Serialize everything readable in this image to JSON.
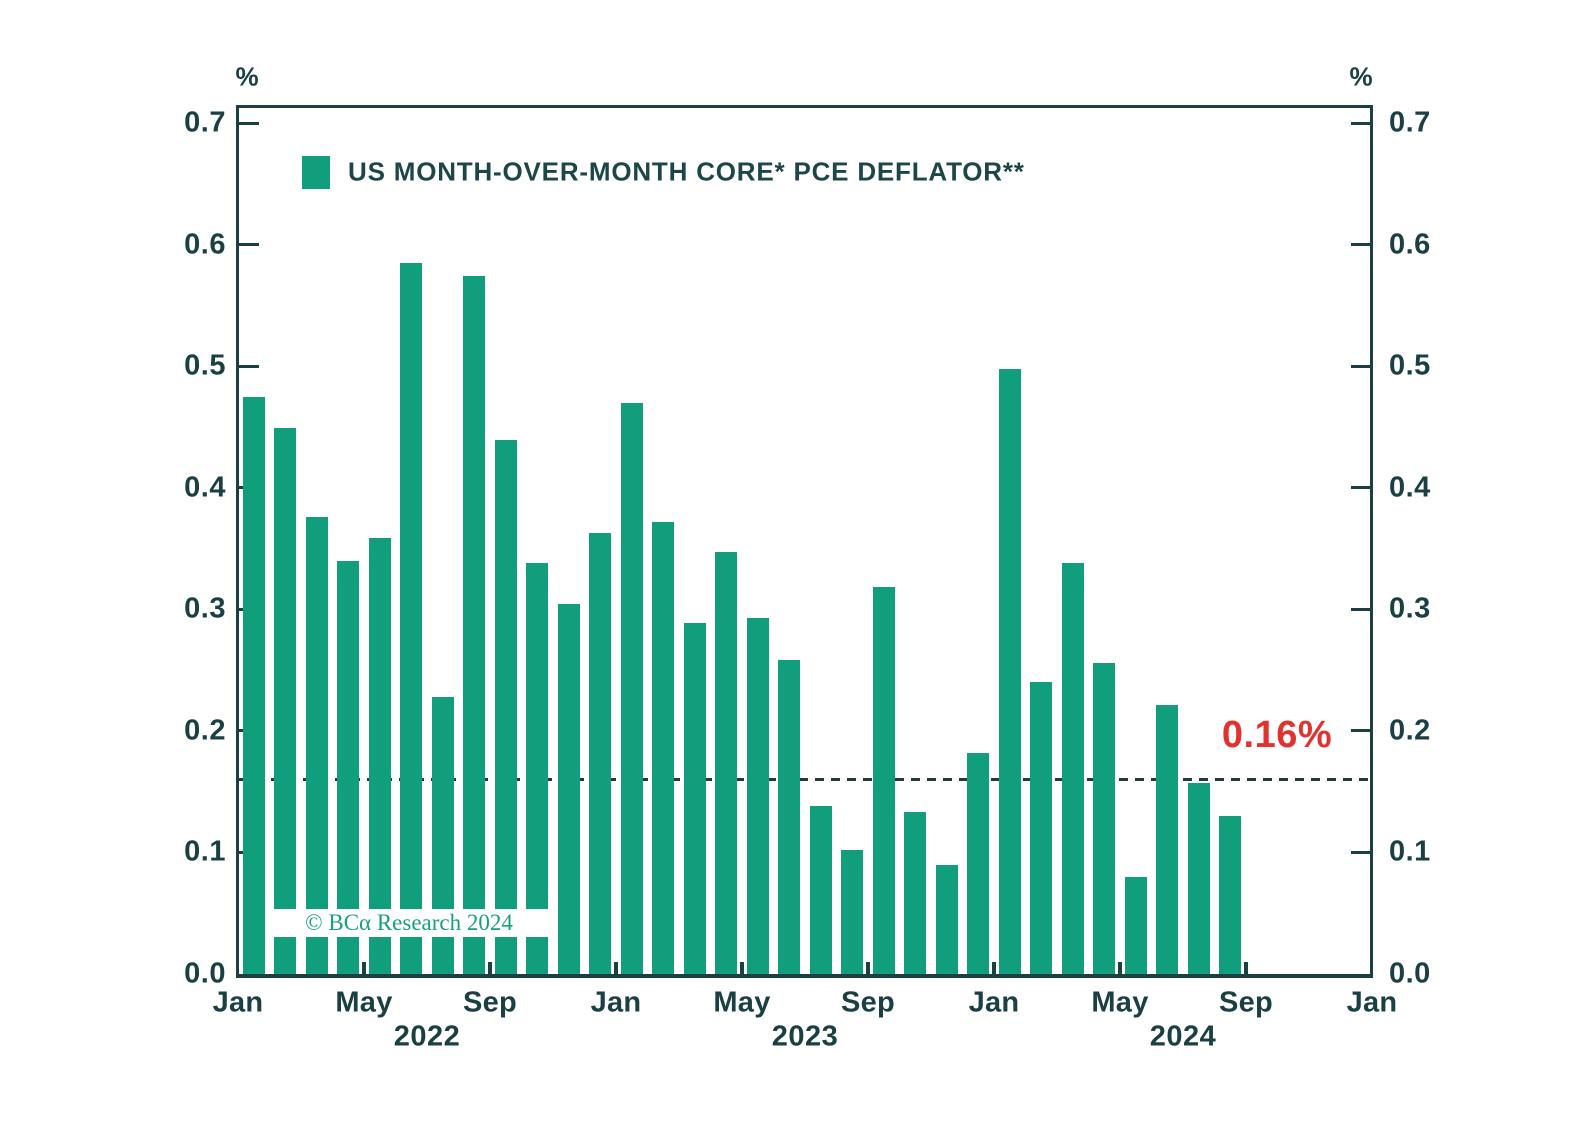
{
  "page": {
    "background": "#ffffff"
  },
  "legend": {
    "label": "US MONTH-OVER-MONTH CORE* PCE DEFLATOR**",
    "swatch_color": "#119e7d"
  },
  "axis": {
    "unit_left": "%",
    "unit_right": "%",
    "y_tick_labels": [
      "0.7",
      "0.6",
      "0.5",
      "0.4",
      "0.3",
      "0.2",
      "0.1",
      "0.0"
    ],
    "x_month_labels": [
      {
        "label": "Jan",
        "month": 0
      },
      {
        "label": "May",
        "month": 4
      },
      {
        "label": "Sep",
        "month": 8
      },
      {
        "label": "Jan",
        "month": 12
      },
      {
        "label": "May",
        "month": 16
      },
      {
        "label": "Sep",
        "month": 20
      },
      {
        "label": "Jan",
        "month": 24
      },
      {
        "label": "May",
        "month": 28
      },
      {
        "label": "Sep",
        "month": 32
      },
      {
        "label": "Jan",
        "month": 36
      }
    ],
    "x_year_labels": [
      {
        "label": "2022",
        "month": 6
      },
      {
        "label": "2023",
        "month": 18
      },
      {
        "label": "2024",
        "month": 30
      }
    ],
    "line_color": "#1c3f44",
    "label_color": "#1b4044"
  },
  "reference": {
    "label": "0.16%",
    "value": 0.16,
    "label_color": "#e23230",
    "line_color": "#223b3e",
    "line_style": "dashed"
  },
  "watermark": {
    "text": "© BCα Research 2024",
    "color": "#16a17e"
  },
  "chart_data": {
    "type": "bar",
    "title": "US MONTH-OVER-MONTH CORE* PCE DEFLATOR**",
    "ylabel": "%",
    "ylim": [
      0.0,
      0.715
    ],
    "yticks": [
      0.0,
      0.1,
      0.2,
      0.3,
      0.4,
      0.5,
      0.6,
      0.7
    ],
    "grid": false,
    "legend_position": "top-left",
    "bar_color": "#119e7d",
    "x_start": "Jan 2022",
    "x_end": "Jan 2025",
    "reference_line": {
      "value": 0.16,
      "label": "0.16%"
    },
    "categories": [
      "Jan 2022",
      "Feb 2022",
      "Mar 2022",
      "Apr 2022",
      "May 2022",
      "Jun 2022",
      "Jul 2022",
      "Aug 2022",
      "Sep 2022",
      "Oct 2022",
      "Nov 2022",
      "Dec 2022",
      "Jan 2023",
      "Feb 2023",
      "Mar 2023",
      "Apr 2023",
      "May 2023",
      "Jun 2023",
      "Jul 2023",
      "Aug 2023",
      "Sep 2023",
      "Oct 2023",
      "Nov 2023",
      "Dec 2023",
      "Jan 2024",
      "Feb 2024",
      "Mar 2024",
      "Apr 2024",
      "May 2024",
      "Jun 2024",
      "Jul 2024",
      "Aug 2024"
    ],
    "values": [
      0.475,
      0.449,
      0.376,
      0.34,
      0.359,
      0.585,
      0.228,
      0.574,
      0.439,
      0.338,
      0.304,
      0.363,
      0.47,
      0.372,
      0.289,
      0.347,
      0.293,
      0.258,
      0.138,
      0.102,
      0.318,
      0.133,
      0.09,
      0.182,
      0.498,
      0.24,
      0.338,
      0.256,
      0.08,
      0.221,
      0.157,
      0.13
    ]
  }
}
